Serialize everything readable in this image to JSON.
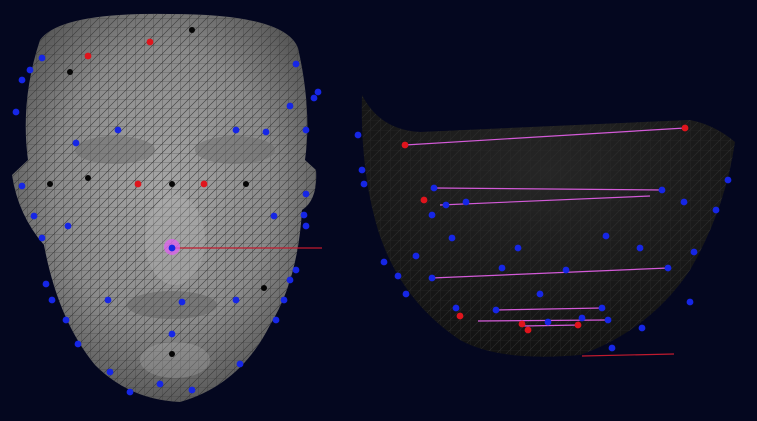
{
  "scene": {
    "background": "#04071f",
    "mesh_color": "#8d8d8d",
    "mesh_dark": "#1d1d1d",
    "landmark_colors": {
      "blue": "#1626e6",
      "red": "#e0141c",
      "black": "#050505",
      "magenta": "#e060f0"
    },
    "line_colors": {
      "magenta": "#d35ad8",
      "red": "#c01a2e"
    }
  },
  "views": [
    {
      "name": "frontal-face-mesh",
      "landmark_count": 60
    },
    {
      "name": "rotated-jaw-mesh",
      "landmark_count": 40
    }
  ]
}
